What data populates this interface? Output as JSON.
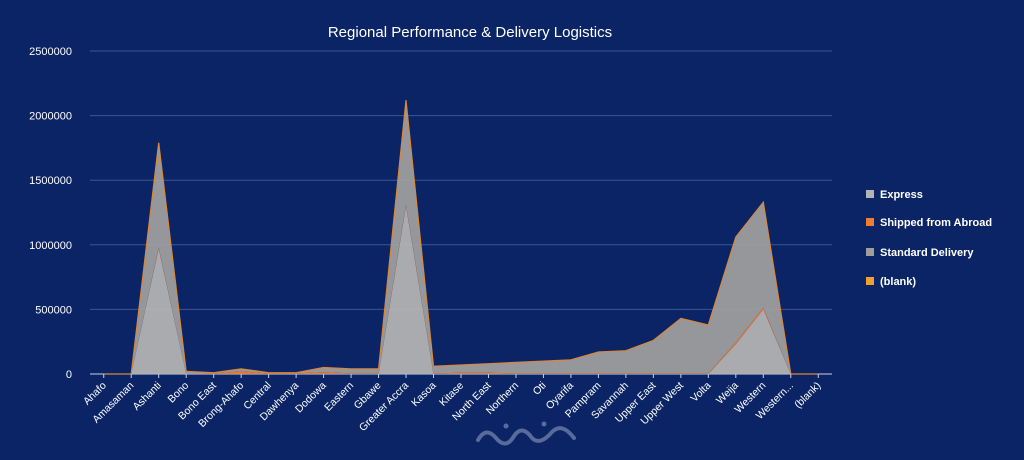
{
  "chart_data": {
    "type": "area",
    "title": "Regional Performance & Delivery Logistics",
    "xlabel": "",
    "ylabel": "",
    "ylim": [
      0,
      2500000
    ],
    "yticks": [
      "0",
      "500000",
      "1000000",
      "1500000",
      "2000000",
      "2500000"
    ],
    "grid": true,
    "legend_position": "right",
    "categories": [
      "Ahafo",
      "Amasaman",
      "Ashanti",
      "Bono",
      "Bono East",
      "Brong-Ahafo",
      "Central",
      "Dawhenya",
      "Dodowa",
      "Eastern",
      "Gbawe",
      "Greater Accra",
      "Kasoa",
      "Kitase",
      "North East",
      "Northern",
      "Oti",
      "Oyarifa",
      "Pampram",
      "Savannah",
      "Upper East",
      "Upper West",
      "Volta",
      "Weija",
      "Western",
      "Western...",
      "(blank)"
    ],
    "series": [
      {
        "name": "Express",
        "color": "#b3b3b3",
        "values": [
          0,
          0,
          970000,
          0,
          0,
          0,
          0,
          0,
          0,
          0,
          0,
          1300000,
          0,
          0,
          0,
          0,
          0,
          0,
          0,
          0,
          0,
          0,
          0,
          230000,
          500000,
          0,
          0
        ]
      },
      {
        "name": "Shipped from Abroad",
        "color": "#ed7d31",
        "values": [
          0,
          0,
          10000,
          0,
          5000,
          20000,
          5000,
          5000,
          15000,
          5000,
          5000,
          10000,
          5000,
          10000,
          10000,
          5000,
          5000,
          5000,
          5000,
          5000,
          5000,
          5000,
          5000,
          15000,
          15000,
          0,
          0
        ]
      },
      {
        "name": "Standard Delivery",
        "color": "#9e9e9e",
        "values": [
          0,
          0,
          810000,
          20000,
          5000,
          20000,
          5000,
          5000,
          35000,
          35000,
          35000,
          810000,
          55000,
          60000,
          70000,
          85000,
          95000,
          105000,
          165000,
          175000,
          255000,
          425000,
          375000,
          815000,
          815000,
          0,
          0
        ]
      },
      {
        "name": "(blank)",
        "color": "#f0a030",
        "values": [
          0,
          0,
          0,
          0,
          0,
          0,
          0,
          0,
          0,
          0,
          0,
          0,
          0,
          0,
          0,
          0,
          0,
          0,
          0,
          0,
          0,
          0,
          0,
          0,
          0,
          0,
          0
        ]
      }
    ]
  },
  "watermark": "خمسات"
}
